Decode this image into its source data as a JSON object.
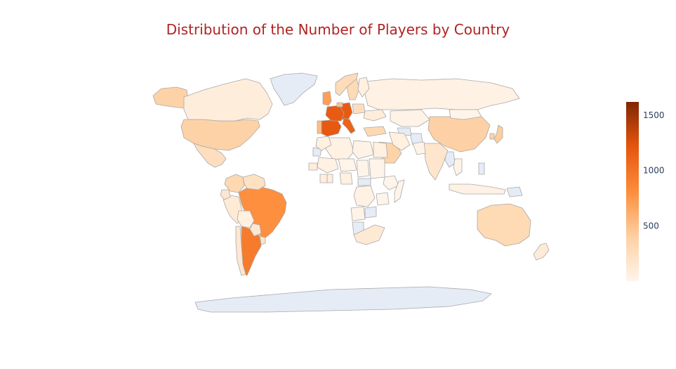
{
  "chart_data": {
    "type": "choropleth",
    "title": "Distribution of the Number of Players by Country",
    "colorscale": {
      "name": "Oranges",
      "stops": [
        "#fff5eb",
        "#fdd0a2",
        "#fd8d3c",
        "#e6550d",
        "#7f2704"
      ],
      "range": [
        0,
        1620
      ],
      "ticks": [
        500,
        1000,
        1500
      ],
      "tick_labels": [
        "500",
        "1000",
        "1500"
      ]
    },
    "no_data_color": "#e5ecf6",
    "border_color": "#a9a9a9",
    "countries": [
      {
        "name": "Spain",
        "value": 1190
      },
      {
        "name": "Germany",
        "value": 1180
      },
      {
        "name": "France",
        "value": 1170
      },
      {
        "name": "Italy",
        "value": 1120
      },
      {
        "name": "Argentina",
        "value": 940
      },
      {
        "name": "Brazil",
        "value": 800
      },
      {
        "name": "United Kingdom",
        "value": 700
      },
      {
        "name": "United States",
        "value": 380
      },
      {
        "name": "China",
        "value": 390
      },
      {
        "name": "Saudi Arabia",
        "value": 370
      },
      {
        "name": "Japan",
        "value": 420
      },
      {
        "name": "South Korea",
        "value": 380
      },
      {
        "name": "Australia",
        "value": 300
      },
      {
        "name": "Alaska (USA)",
        "value": 380
      },
      {
        "name": "Colombia",
        "value": 320
      },
      {
        "name": "Portugal",
        "value": 520
      },
      {
        "name": "Netherlands",
        "value": 500
      },
      {
        "name": "Sweden",
        "value": 300
      },
      {
        "name": "Norway",
        "value": 280
      },
      {
        "name": "Poland",
        "value": 250
      },
      {
        "name": "Turkey",
        "value": 310
      },
      {
        "name": "Mexico",
        "value": 250
      },
      {
        "name": "Venezuela",
        "value": 220
      },
      {
        "name": "Canada",
        "value": 90
      },
      {
        "name": "Russia",
        "value": 40
      },
      {
        "name": "India",
        "value": 180
      },
      {
        "name": "Iran",
        "value": 60
      },
      {
        "name": "Kazakhstan",
        "value": 30
      },
      {
        "name": "Peru",
        "value": 120
      },
      {
        "name": "Chile",
        "value": 150
      },
      {
        "name": "Uruguay",
        "value": 200
      },
      {
        "name": "Ecuador",
        "value": 150
      },
      {
        "name": "Bolivia",
        "value": 60
      },
      {
        "name": "Paraguay",
        "value": 150
      },
      {
        "name": "New Zealand",
        "value": 110
      },
      {
        "name": "Algeria",
        "value": 40
      },
      {
        "name": "Libya",
        "value": 20
      },
      {
        "name": "Egypt",
        "value": 60
      },
      {
        "name": "Morocco",
        "value": 60
      },
      {
        "name": "Nigeria",
        "value": 60
      },
      {
        "name": "Ghana",
        "value": 80
      },
      {
        "name": "Ivory Coast",
        "value": 80
      },
      {
        "name": "Senegal",
        "value": 90
      },
      {
        "name": "Mali",
        "value": 40
      },
      {
        "name": "Niger",
        "value": 10
      },
      {
        "name": "Chad",
        "value": 10
      },
      {
        "name": "Sudan",
        "value": 10
      },
      {
        "name": "Ethiopia",
        "value": 10
      },
      {
        "name": "Somalia",
        "value": 10
      },
      {
        "name": "DR Congo",
        "value": 40
      },
      {
        "name": "Angola",
        "value": 30
      },
      {
        "name": "South Africa",
        "value": 130
      },
      {
        "name": "Tanzania",
        "value": 10
      },
      {
        "name": "Mongolia",
        "value": 10
      },
      {
        "name": "Indonesia",
        "value": 40
      },
      {
        "name": "Thailand",
        "value": 20
      },
      {
        "name": "Pakistan",
        "value": 20
      },
      {
        "name": "Ukraine",
        "value": 90
      },
      {
        "name": "Finland",
        "value": 60
      }
    ],
    "no_data_regions": [
      "Greenland",
      "Antarctica",
      "Western Sahara",
      "Afghanistan",
      "Turkmenistan",
      "Central African Republic",
      "Zambia",
      "Namibia",
      "Myanmar",
      "Philippines",
      "Papua New Guinea"
    ]
  }
}
